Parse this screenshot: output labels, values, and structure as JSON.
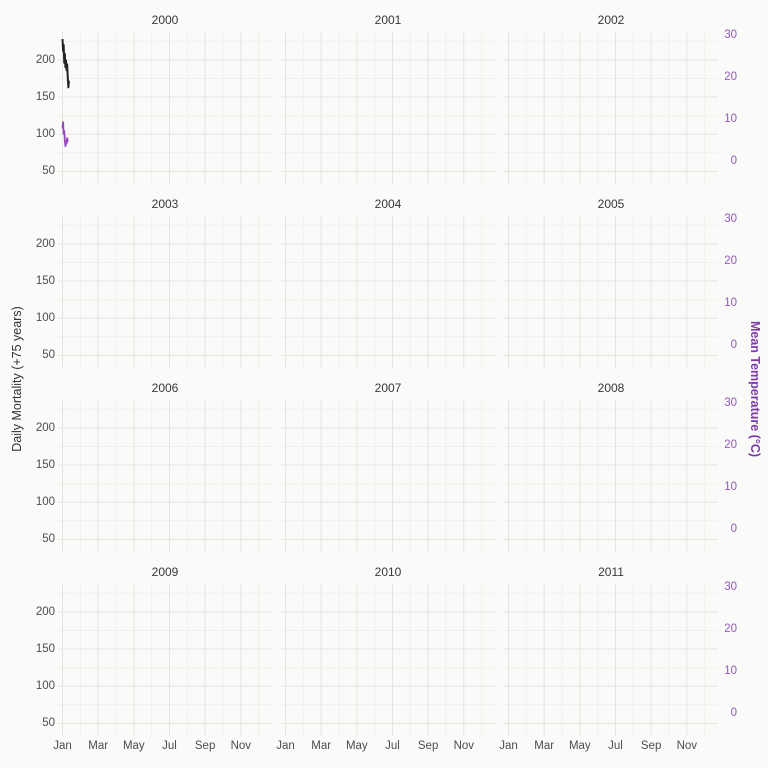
{
  "figure": {
    "left_axis_title": "Daily Mortality (+75 years)",
    "right_axis_title": "Mean Temperature (°C)",
    "facet_years": [
      "2000",
      "2001",
      "2002",
      "2003",
      "2004",
      "2005",
      "2006",
      "2007",
      "2008",
      "2009",
      "2010",
      "2011"
    ],
    "left_tick_labels": [
      "200",
      "150",
      "100",
      "50"
    ],
    "right_tick_labels": [
      "30",
      "20",
      "10",
      "0"
    ],
    "x_tick_labels": [
      "Jan",
      "Mar",
      "May",
      "Jul",
      "Sep",
      "Nov"
    ],
    "colors": {
      "background": "#FAFAF8",
      "grid_major": "#E4E4E2",
      "grid_minor": "#F0F0EE",
      "tick_label": "#4D4D4D",
      "strip_label": "#383838",
      "left_axis_title": "#333333",
      "right_axis_title": "#7D3AA8",
      "right_tick_label": "#9358B8",
      "mortality_line": "#222222",
      "temperature_line": "#9448BC"
    }
  },
  "chart_data": {
    "type": "line",
    "title": "",
    "facet_variable": "year",
    "facets": [
      "2000",
      "2001",
      "2002",
      "2003",
      "2004",
      "2005",
      "2006",
      "2007",
      "2008",
      "2009",
      "2010",
      "2011"
    ],
    "x_axis": {
      "tick_labels": [
        "Jan",
        "Mar",
        "May",
        "Jul",
        "Sep",
        "Nov"
      ],
      "months_per_panel": 12,
      "note": "monthly gridlines, labels every 2 months, bottom row only"
    },
    "left_axis": {
      "label": "Daily Mortality (+75 years)",
      "ticks": [
        50,
        100,
        150,
        200
      ],
      "minor_ticks": [
        75,
        125,
        175,
        225
      ],
      "domain": [
        33,
        237.5
      ]
    },
    "right_axis": {
      "label": "Mean Temperature (°C)",
      "ticks": [
        0,
        10,
        20,
        30
      ],
      "domain": [
        -5.4,
        30.7
      ]
    },
    "series": [
      {
        "name": "Daily Mortality (+75 years)",
        "facet": "2000",
        "axis": "left",
        "x_days": [
          1,
          2,
          3,
          4,
          5,
          6,
          7,
          8,
          9,
          10,
          11,
          12
        ],
        "values": [
          228,
          212,
          220,
          196,
          208,
          190,
          199,
          186,
          194,
          176,
          163,
          172
        ]
      },
      {
        "name": "Mean Temperature (°C)",
        "facet": "2000",
        "axis": "right",
        "x_days": [
          1,
          2,
          3,
          4,
          5,
          6,
          7,
          8,
          9,
          10
        ],
        "values": [
          7.8,
          9.3,
          6.5,
          7.2,
          5.0,
          3.6,
          4.8,
          4.2,
          5.5,
          4.6
        ]
      }
    ],
    "legend": "none"
  }
}
